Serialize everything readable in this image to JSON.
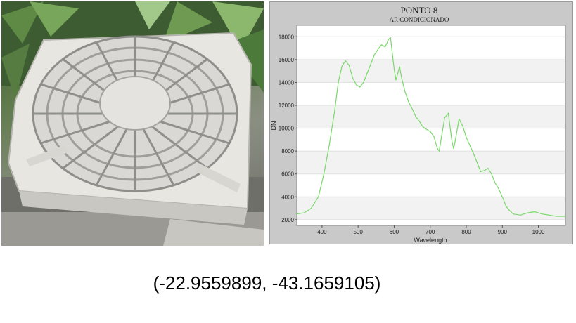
{
  "photo": {
    "description_icon": "fan-icon",
    "colors": {
      "foliage": "#4a6a3a",
      "unit": "#e9e7e2",
      "grille": "#cfcfcc"
    }
  },
  "coordinates": "(-22.9559899, -43.1659105)",
  "chart_data": {
    "type": "line",
    "title": "PONTO 8",
    "subtitle": "AR CONDICIONADO",
    "xlabel": "Wavelength",
    "ylabel": "DN",
    "xlim": [
      330,
      1075
    ],
    "ylim": [
      1500,
      19000
    ],
    "x_ticks": [
      400,
      500,
      600,
      700,
      800,
      900,
      1000
    ],
    "y_ticks": [
      2000,
      4000,
      6000,
      8000,
      10000,
      12000,
      14000,
      16000,
      18000
    ],
    "grid": true,
    "line_color": "#7ad86b",
    "series": [
      {
        "x": [
          330,
          350,
          370,
          390,
          405,
          420,
          435,
          445,
          455,
          465,
          475,
          485,
          495,
          505,
          515,
          525,
          535,
          545,
          555,
          565,
          575,
          585,
          590,
          595,
          600,
          605,
          610,
          615,
          620,
          630,
          640,
          650,
          660,
          670,
          680,
          690,
          700,
          710,
          720,
          725,
          730,
          740,
          750,
          760,
          765,
          770,
          780,
          790,
          800,
          810,
          820,
          830,
          840,
          850,
          860,
          870,
          880,
          890,
          900,
          910,
          920,
          930,
          950,
          970,
          990,
          1010,
          1030,
          1050,
          1075
        ],
        "y": [
          2500,
          2600,
          3000,
          4000,
          6000,
          8500,
          11500,
          14000,
          15400,
          15900,
          15500,
          14400,
          13800,
          13600,
          14000,
          14800,
          15600,
          16400,
          16900,
          17300,
          17100,
          17800,
          17900,
          16500,
          15200,
          14200,
          14800,
          15400,
          14500,
          13200,
          12300,
          11700,
          11000,
          10600,
          10100,
          9900,
          9700,
          9300,
          8200,
          8000,
          9000,
          10900,
          11300,
          8900,
          8200,
          9000,
          10800,
          10200,
          9200,
          8500,
          7800,
          7000,
          6200,
          6300,
          6500,
          6000,
          5200,
          4700,
          4000,
          3200,
          2800,
          2500,
          2400,
          2600,
          2700,
          2500,
          2400,
          2300,
          2300
        ]
      }
    ]
  }
}
